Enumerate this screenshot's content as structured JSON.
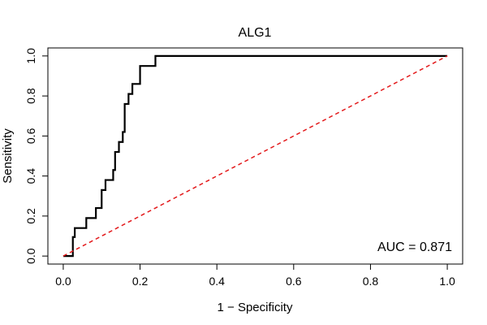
{
  "chart_data": {
    "type": "line",
    "title": "ALG1",
    "xlabel": "1 − Specificity",
    "ylabel": "Sensitivity",
    "xlim": [
      -0.04,
      1.04
    ],
    "ylim": [
      -0.04,
      1.04
    ],
    "x_ticks": [
      "0.0",
      "0.2",
      "0.4",
      "0.6",
      "0.8",
      "1.0"
    ],
    "y_ticks": [
      "0.0",
      "0.2",
      "0.4",
      "0.6",
      "0.8",
      "1.0"
    ],
    "x_tick_values": [
      0,
      0.2,
      0.4,
      0.6,
      0.8,
      1.0
    ],
    "y_tick_values": [
      0,
      0.2,
      0.4,
      0.6,
      0.8,
      1.0
    ],
    "series": [
      {
        "color": "#000000",
        "style": "solid",
        "x": [
          0,
          0.02,
          0.025,
          0.025,
          0.03,
          0.03,
          0.045,
          0.06,
          0.06,
          0.085,
          0.085,
          0.1,
          0.1,
          0.11,
          0.11,
          0.13,
          0.13,
          0.135,
          0.135,
          0.145,
          0.145,
          0.155,
          0.155,
          0.16,
          0.16,
          0.17,
          0.17,
          0.18,
          0.18,
          0.19,
          0.19,
          0.2,
          0.2,
          0.24,
          0.24,
          1.0
        ],
        "y": [
          0,
          0,
          0,
          0.095,
          0.095,
          0.14,
          0.14,
          0.14,
          0.19,
          0.19,
          0.24,
          0.24,
          0.33,
          0.33,
          0.38,
          0.38,
          0.43,
          0.43,
          0.52,
          0.52,
          0.57,
          0.57,
          0.62,
          0.62,
          0.76,
          0.76,
          0.81,
          0.81,
          0.86,
          0.86,
          0.86,
          0.86,
          0.95,
          0.95,
          1.0,
          1.0
        ]
      },
      {
        "color": "#e31a1c",
        "style": "dashed",
        "x": [
          0,
          1
        ],
        "y": [
          0,
          1
        ]
      }
    ],
    "grid": false,
    "annotations": [
      {
        "text": "AUC = 0.871",
        "position": "bottom-right"
      }
    ]
  }
}
